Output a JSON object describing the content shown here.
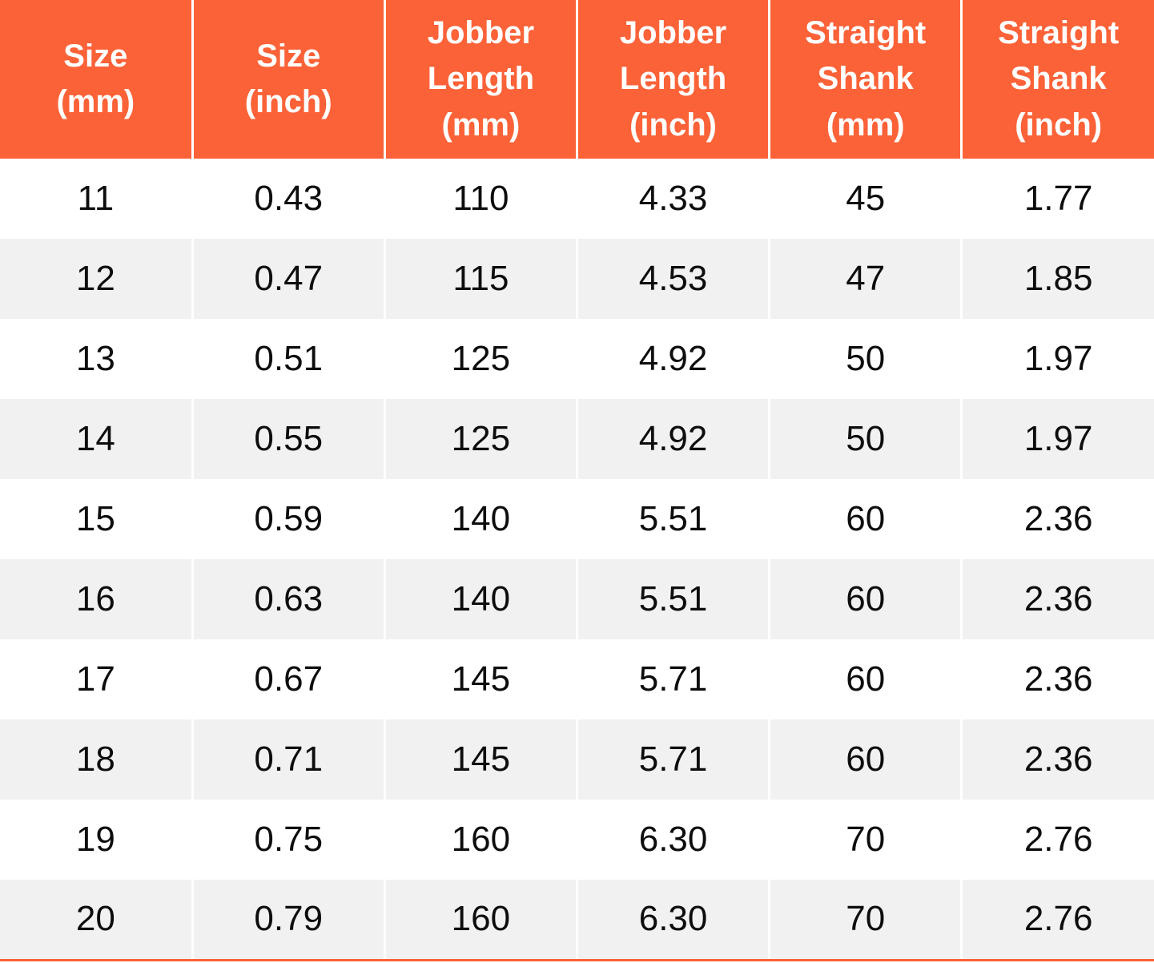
{
  "colors": {
    "header_bg": "#FB6238",
    "row_alt_bg": "#F1F1F1",
    "row_bg": "#FFFFFF",
    "divider": "#FFFFFF",
    "text": "#0D0D0D",
    "header_text": "#FFFFFF",
    "bottom_border": "#FB6238"
  },
  "table": {
    "headers": [
      "Size\n(mm)",
      "Size\n(inch)",
      "Jobber\nLength\n(mm)",
      "Jobber\nLength\n(inch)",
      "Straight\nShank\n(mm)",
      "Straight\nShank\n(inch)"
    ],
    "rows": [
      [
        "11",
        "0.43",
        "110",
        "4.33",
        "45",
        "1.77"
      ],
      [
        "12",
        "0.47",
        "115",
        "4.53",
        "47",
        "1.85"
      ],
      [
        "13",
        "0.51",
        "125",
        "4.92",
        "50",
        "1.97"
      ],
      [
        "14",
        "0.55",
        "125",
        "4.92",
        "50",
        "1.97"
      ],
      [
        "15",
        "0.59",
        "140",
        "5.51",
        "60",
        "2.36"
      ],
      [
        "16",
        "0.63",
        "140",
        "5.51",
        "60",
        "2.36"
      ],
      [
        "17",
        "0.67",
        "145",
        "5.71",
        "60",
        "2.36"
      ],
      [
        "18",
        "0.71",
        "145",
        "5.71",
        "60",
        "2.36"
      ],
      [
        "19",
        "0.75",
        "160",
        "6.30",
        "70",
        "2.76"
      ],
      [
        "20",
        "0.79",
        "160",
        "6.30",
        "70",
        "2.76"
      ]
    ]
  },
  "chart_data": {
    "type": "table",
    "title": "",
    "columns": [
      "Size (mm)",
      "Size (inch)",
      "Jobber Length (mm)",
      "Jobber Length (inch)",
      "Straight Shank (mm)",
      "Straight Shank (inch)"
    ],
    "rows": [
      [
        11,
        0.43,
        110,
        4.33,
        45,
        1.77
      ],
      [
        12,
        0.47,
        115,
        4.53,
        47,
        1.85
      ],
      [
        13,
        0.51,
        125,
        4.92,
        50,
        1.97
      ],
      [
        14,
        0.55,
        125,
        4.92,
        50,
        1.97
      ],
      [
        15,
        0.59,
        140,
        5.51,
        60,
        2.36
      ],
      [
        16,
        0.63,
        140,
        5.51,
        60,
        2.36
      ],
      [
        17,
        0.67,
        145,
        5.71,
        60,
        2.36
      ],
      [
        18,
        0.71,
        145,
        5.71,
        60,
        2.36
      ],
      [
        19,
        0.75,
        160,
        6.3,
        70,
        2.76
      ],
      [
        20,
        0.79,
        160,
        6.3,
        70,
        2.76
      ]
    ],
    "layout_hints": {
      "header_fill": "#FB6238",
      "alternating_row_fill": "#F1F1F1",
      "zebra_start": "white",
      "grid": "white vertical dividers, orange bottom rule"
    }
  }
}
